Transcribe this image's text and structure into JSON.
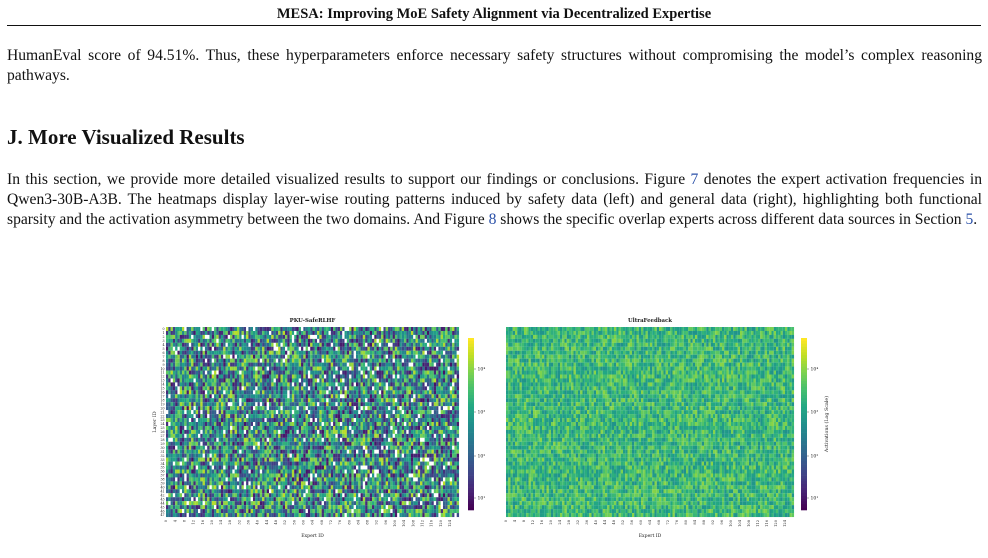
{
  "header": {
    "title": "MESA: Improving MoE Safety Alignment via Decentralized Expertise"
  },
  "paragraph_1": {
    "text": "HumanEval score of 94.51%. Thus, these hyperparameters enforce necessary safety structures without compromising the model’s complex reasoning pathways."
  },
  "section": {
    "heading": "J. More Visualized Results"
  },
  "paragraph_2": {
    "part1": "In this section, we provide more detailed visualized results to support our findings or conclusions. Figure ",
    "ref_fig7": "7",
    "part2": " denotes the expert activation frequencies in Qwen3-30B-A3B. The heatmaps display layer-wise routing patterns induced by safety data (left) and general data (right), highlighting both functional sparsity and the activation asymmetry between the two domains. And Figure ",
    "ref_fig8": "8",
    "part3": " shows the specific overlap experts across different data sources in Section ",
    "ref_sec5": "5",
    "part4": "."
  },
  "chart_data": [
    {
      "type": "heatmap",
      "title": "PKU-SafeRLHF",
      "xlabel": "Expert ID",
      "ylabel": "Layer ID",
      "x_ticks": [
        "0",
        "4",
        "8",
        "12",
        "16",
        "20",
        "24",
        "28",
        "32",
        "36",
        "40",
        "44",
        "48",
        "52",
        "56",
        "60",
        "64",
        "68",
        "72",
        "76",
        "80",
        "84",
        "88",
        "92",
        "96",
        "100",
        "104",
        "108",
        "112",
        "116",
        "120",
        "124"
      ],
      "y_ticks": [
        "0",
        "1",
        "2",
        "3",
        "4",
        "5",
        "6",
        "7",
        "8",
        "9",
        "10",
        "11",
        "12",
        "13",
        "14",
        "15",
        "16",
        "17",
        "18",
        "19",
        "20",
        "21",
        "22",
        "23",
        "24",
        "25",
        "26",
        "27",
        "28",
        "29",
        "30",
        "31",
        "32",
        "33",
        "34",
        "35",
        "36",
        "37",
        "38",
        "39",
        "40",
        "41",
        "42",
        "43",
        "44",
        "45",
        "46",
        "47"
      ],
      "n_experts": 128,
      "n_layers": 48,
      "colormap": "viridis",
      "color_scale": "log",
      "colorbar_ticks": [
        "10¹",
        "10²",
        "10³",
        "10⁴"
      ],
      "zero_color": "#ffffff",
      "pattern": "sparse, high-variance activations with many near-zero (white) cells"
    },
    {
      "type": "heatmap",
      "title": "UltraFeedback",
      "xlabel": "Expert ID",
      "ylabel": "",
      "x_ticks": [
        "0",
        "4",
        "8",
        "12",
        "16",
        "20",
        "24",
        "28",
        "32",
        "36",
        "40",
        "44",
        "48",
        "52",
        "56",
        "60",
        "64",
        "68",
        "72",
        "76",
        "80",
        "84",
        "88",
        "92",
        "96",
        "100",
        "104",
        "108",
        "112",
        "116",
        "120",
        "124"
      ],
      "n_experts": 128,
      "n_layers": 48,
      "colormap": "viridis",
      "color_scale": "log",
      "colorbar_label": "Activations (Log Scale)",
      "colorbar_ticks": [
        "10¹",
        "10²",
        "10³",
        "10⁴"
      ],
      "pattern": "dense, uniformly moderate-to-high activations"
    }
  ]
}
